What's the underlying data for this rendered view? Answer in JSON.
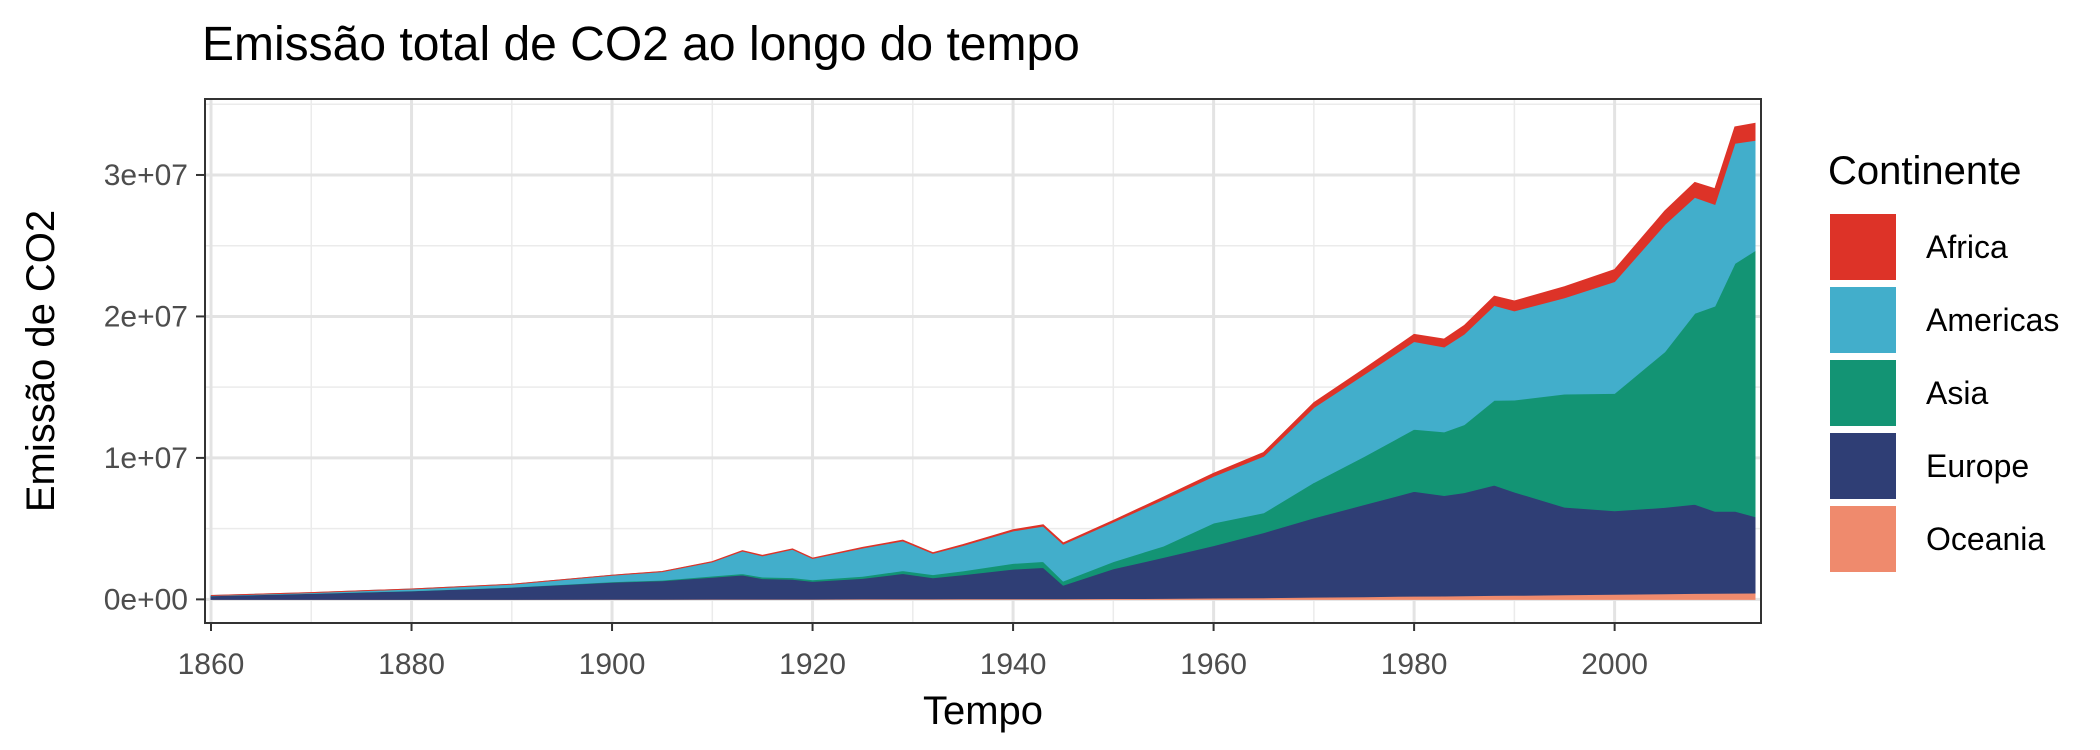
{
  "chart_data": {
    "type": "area",
    "stacked": true,
    "title": "Emissão total de CO2 ao longo do tempo",
    "xlabel": "Tempo",
    "ylabel": "Emissão de CO2",
    "xlim": [
      1859.5,
      2014.5
    ],
    "ylim": [
      -1600000,
      35300000
    ],
    "x_ticks": [
      1860,
      1880,
      1900,
      1920,
      1940,
      1960,
      1980,
      2000
    ],
    "y_ticks": [
      0,
      10000000,
      20000000,
      30000000
    ],
    "y_tick_labels": [
      "0e+00",
      "1e+07",
      "2e+07",
      "3e+07"
    ],
    "grid": true,
    "legend_title": "Continente",
    "legend_position": "right",
    "x": [
      1860,
      1870,
      1880,
      1890,
      1900,
      1905,
      1910,
      1913,
      1915,
      1918,
      1920,
      1925,
      1929,
      1932,
      1935,
      1940,
      1943,
      1945,
      1950,
      1955,
      1960,
      1965,
      1970,
      1975,
      1980,
      1983,
      1985,
      1988,
      1990,
      1995,
      2000,
      2005,
      2008,
      2010,
      2012,
      2014
    ],
    "series": [
      {
        "name": "Oceania",
        "color": "#ef8a6d",
        "values": [
          0,
          0,
          0,
          0,
          10000,
          10000,
          20000,
          20000,
          20000,
          20000,
          20000,
          30000,
          30000,
          30000,
          40000,
          40000,
          50000,
          50000,
          60000,
          70000,
          100000,
          120000,
          160000,
          190000,
          230000,
          240000,
          250000,
          280000,
          290000,
          320000,
          360000,
          400000,
          420000,
          430000,
          440000,
          450000
        ]
      },
      {
        "name": "Europe",
        "color": "#2f3e75",
        "values": [
          250000,
          420000,
          600000,
          850000,
          1200000,
          1300000,
          1550000,
          1700000,
          1450000,
          1400000,
          1250000,
          1450000,
          1800000,
          1500000,
          1700000,
          2100000,
          2200000,
          950000,
          2100000,
          2900000,
          3700000,
          4600000,
          5600000,
          6500000,
          7400000,
          7100000,
          7300000,
          7800000,
          7300000,
          6200000,
          5900000,
          6100000,
          6300000,
          5800000,
          5800000,
          5400000
        ]
      },
      {
        "name": "Asia",
        "color": "#139474",
        "values": [
          0,
          0,
          10000,
          20000,
          40000,
          50000,
          80000,
          100000,
          110000,
          120000,
          120000,
          150000,
          200000,
          220000,
          270000,
          400000,
          430000,
          300000,
          500000,
          800000,
          1600000,
          1400000,
          2500000,
          3400000,
          4400000,
          4500000,
          4800000,
          6000000,
          6500000,
          8000000,
          8300000,
          11000000,
          13500000,
          14500000,
          17500000,
          18800000
        ]
      },
      {
        "name": "Americas",
        "color": "#42aecb",
        "values": [
          20000,
          60000,
          120000,
          200000,
          450000,
          600000,
          1000000,
          1600000,
          1500000,
          2000000,
          1500000,
          2000000,
          2100000,
          1500000,
          1800000,
          2300000,
          2500000,
          2600000,
          2800000,
          3300000,
          3300000,
          4000000,
          5300000,
          5800000,
          6200000,
          6000000,
          6400000,
          6700000,
          6300000,
          6800000,
          7900000,
          9000000,
          8200000,
          7200000,
          8500000,
          7800000
        ]
      },
      {
        "name": "Africa",
        "color": "#dd3328",
        "values": [
          0,
          0,
          0,
          0,
          10000,
          10000,
          20000,
          30000,
          30000,
          30000,
          30000,
          40000,
          50000,
          50000,
          60000,
          80000,
          90000,
          90000,
          120000,
          160000,
          210000,
          270000,
          340000,
          400000,
          500000,
          560000,
          600000,
          650000,
          700000,
          780000,
          850000,
          950000,
          1050000,
          1100000,
          1150000,
          1200000
        ]
      }
    ]
  }
}
